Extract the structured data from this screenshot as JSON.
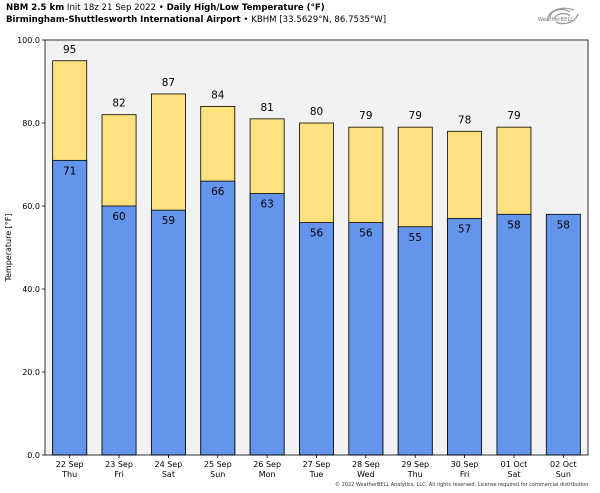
{
  "header": {
    "line1_model": "NBM 2.5 km",
    "line1_init": "Init 18z 21 Sep 2022",
    "line1_sep": "•",
    "line1_title": "Daily High/Low Temperature (°F)",
    "line2_station": "Birmingham-Shuttlesworth International Airport",
    "line2_sep": "•",
    "line2_coords": "KBHM [33.5629°N, 86.7535°W]"
  },
  "logo": {
    "text": "WeatherBELL",
    "icon": "weatherbell-swirl-logo"
  },
  "copyright": "© 2022 WeatherBELL Analytics, LLC. All rights reserved. License required for commercial distribution.",
  "chart_data": {
    "type": "bar",
    "ylabel": "Temperature [°F]",
    "ylim": [
      0,
      100
    ],
    "yticks": [
      "0.0",
      "20.0",
      "40.0",
      "60.0",
      "80.0",
      "100.0"
    ],
    "ytick_values": [
      0,
      20,
      40,
      60,
      80,
      100
    ],
    "grid": false,
    "categories": [
      {
        "date": "22 Sep",
        "day": "Thu"
      },
      {
        "date": "23 Sep",
        "day": "Fri"
      },
      {
        "date": "24 Sep",
        "day": "Sat"
      },
      {
        "date": "25 Sep",
        "day": "Sun"
      },
      {
        "date": "26 Sep",
        "day": "Mon"
      },
      {
        "date": "27 Sep",
        "day": "Tue"
      },
      {
        "date": "28 Sep",
        "day": "Wed"
      },
      {
        "date": "29 Sep",
        "day": "Thu"
      },
      {
        "date": "30 Sep",
        "day": "Fri"
      },
      {
        "date": "01 Oct",
        "day": "Sat"
      },
      {
        "date": "02 Oct",
        "day": "Sun"
      }
    ],
    "series": [
      {
        "color": "#ffe17f",
        "values": [
          95,
          82,
          87,
          84,
          81,
          80,
          79,
          79,
          78,
          79,
          null
        ]
      },
      {
        "color": "#6495ed",
        "values": [
          71,
          60,
          59,
          66,
          63,
          56,
          56,
          55,
          57,
          58,
          58
        ]
      }
    ],
    "plot_background": "#f2f2f2",
    "bar_edge_color": "#000000"
  }
}
